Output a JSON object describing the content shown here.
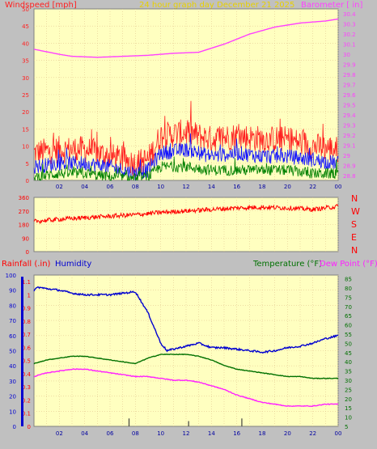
{
  "colors": {
    "plot_bg": "#ffffc0",
    "grid": "#e4c890",
    "wind_gust": "#ff2020",
    "wind_avg": "#1010ff",
    "wind_min": "#008000",
    "barometer": "#ff40ff",
    "wind_dir": "#ff0000",
    "rain": "#ff0000",
    "humidity": "#0000d0",
    "temperature": "#007000",
    "dew_point": "#ff20ff",
    "title": "#e8d000"
  },
  "header": {
    "wind_label": "Windspeed [mph]",
    "title": "24 hour graph day  December 21 2025",
    "baro_label": "Barometer [ in]"
  },
  "dir_labels": [
    "N",
    "W",
    "S",
    "E",
    "N"
  ],
  "bottom_header": {
    "rain_label": "Rainfall (.in)",
    "humidity_label": "Humidity",
    "temp_label": "Temperature (°F)",
    "dew_label": "Dew Point (°F)"
  },
  "chart_data": [
    {
      "type": "line",
      "title": "24 hour graph day  December 21 2025",
      "x_ticks": [
        "02",
        "04",
        "06",
        "08",
        "10",
        "12",
        "14",
        "16",
        "18",
        "20",
        "22",
        "00"
      ],
      "left_axis": {
        "label": "Windspeed [mph]",
        "ticks": [
          "0",
          "5",
          "10",
          "15",
          "20",
          "25",
          "30",
          "35",
          "40",
          "45",
          "50"
        ],
        "ylim": [
          0,
          50
        ]
      },
      "right_axis": {
        "label": "Barometer [ in]",
        "ticks": [
          "28.8",
          "28.9",
          "29",
          "29.1",
          "29.2",
          "29.3",
          "29.4",
          "29.5",
          "29.6",
          "29.7",
          "29.8",
          "29.9",
          "30",
          "30.1",
          "30.2",
          "30.3",
          "30.4"
        ],
        "ylim": [
          28.75,
          30.45
        ]
      },
      "barometer": {
        "x": [
          0,
          2,
          3,
          5,
          7,
          9,
          11,
          13,
          15,
          17,
          19,
          21,
          23,
          24
        ],
        "y": [
          30.05,
          30.0,
          29.98,
          29.97,
          29.98,
          29.99,
          30.01,
          30.02,
          30.1,
          30.2,
          30.27,
          30.31,
          30.33,
          30.35
        ]
      },
      "wind_gust_level": {
        "x": [
          0,
          2,
          4,
          6,
          8,
          9,
          10,
          12,
          14,
          16,
          18,
          20,
          22,
          24
        ],
        "y": [
          8,
          9,
          9,
          7,
          5,
          6,
          13,
          14,
          12,
          13,
          12,
          12,
          10,
          9
        ]
      },
      "wind_avg_level": {
        "x": [
          0,
          2,
          4,
          6,
          8,
          9,
          10,
          12,
          14,
          16,
          18,
          20,
          22,
          24
        ],
        "y": [
          4,
          5,
          5,
          4,
          2,
          3,
          8,
          9,
          7,
          8,
          7,
          7,
          6,
          5
        ]
      },
      "wind_min_level": {
        "x": [
          0,
          2,
          4,
          6,
          8,
          9,
          10,
          12,
          14,
          16,
          18,
          20,
          22,
          24
        ],
        "y": [
          1,
          2,
          2,
          1,
          0.5,
          1,
          4,
          4,
          3,
          3,
          3,
          3,
          2,
          2
        ]
      }
    },
    {
      "type": "line",
      "x_ticks": [],
      "left_axis": {
        "ticks": [
          "0",
          "90",
          "180",
          "270",
          "360"
        ],
        "ylim": [
          0,
          360
        ]
      },
      "wind_direction": {
        "x": [
          0,
          2,
          4,
          6,
          8,
          10,
          12,
          14,
          16,
          18,
          20,
          22,
          24
        ],
        "y": [
          200,
          215,
          225,
          235,
          245,
          260,
          270,
          280,
          290,
          295,
          290,
          280,
          300
        ]
      }
    },
    {
      "type": "line",
      "x_ticks": [
        "02",
        "04",
        "06",
        "08",
        "10",
        "12",
        "14",
        "16",
        "18",
        "20",
        "22",
        "00"
      ],
      "left_axis_humidity": {
        "ticks": [
          "0",
          "10",
          "20",
          "30",
          "40",
          "50",
          "60",
          "70",
          "80",
          "90",
          "100"
        ],
        "ylim": [
          0,
          100
        ]
      },
      "left_axis_rain": {
        "ticks": [
          "0",
          "0.1",
          "0.2",
          "0.3",
          "0.4",
          "0.5",
          "0.6",
          "0.7",
          "0.8",
          "0.9",
          "1",
          "1.1"
        ],
        "ylim": [
          0,
          1.15
        ]
      },
      "right_axis_temp": {
        "ticks": [
          "5",
          "10",
          "15",
          "20",
          "25",
          "30",
          "35",
          "40",
          "45",
          "50",
          "55",
          "60",
          "65",
          "70",
          "75",
          "80",
          "85"
        ],
        "ylim": [
          5,
          87
        ]
      },
      "humidity": {
        "x": [
          0,
          0.3,
          1,
          2,
          3,
          4,
          5,
          6,
          7,
          8,
          9,
          10,
          10.5,
          11,
          12,
          13,
          14,
          15,
          16,
          17,
          18,
          19,
          20,
          21,
          22,
          23,
          24
        ],
        "y": [
          90,
          92,
          91,
          90,
          88,
          87,
          87,
          87,
          88,
          89,
          75,
          55,
          50,
          51,
          53,
          55,
          52,
          52,
          51,
          50,
          49,
          50,
          52,
          53,
          55,
          58,
          60
        ]
      },
      "temperature": {
        "x": [
          0,
          1,
          2,
          3,
          4,
          5,
          6,
          7,
          8,
          9,
          10,
          11,
          12,
          13,
          14,
          15,
          16,
          17,
          18,
          19,
          20,
          21,
          22,
          23,
          24
        ],
        "y": [
          39,
          41,
          42,
          43,
          43,
          42,
          41,
          40,
          39,
          42,
          44,
          44,
          44,
          43,
          41,
          38,
          36,
          35,
          34,
          33,
          32,
          32,
          31,
          31,
          31
        ]
      },
      "dew_point": {
        "x": [
          0,
          1,
          2,
          3,
          4,
          5,
          6,
          7,
          8,
          9,
          10,
          11,
          12,
          13,
          14,
          15,
          16,
          17,
          18,
          19,
          20,
          21,
          22,
          23,
          24
        ],
        "y": [
          32,
          34,
          35,
          36,
          36,
          35,
          34,
          33,
          32,
          32,
          31,
          30,
          30,
          29,
          27,
          25,
          22,
          20,
          18,
          17,
          16,
          16,
          16,
          17,
          17
        ]
      },
      "rain_marks": [
        {
          "x": 7.5,
          "value": 0.06
        },
        {
          "x": 12.2,
          "value": 0.04
        },
        {
          "x": 16.4,
          "value": 0.06
        }
      ]
    }
  ]
}
